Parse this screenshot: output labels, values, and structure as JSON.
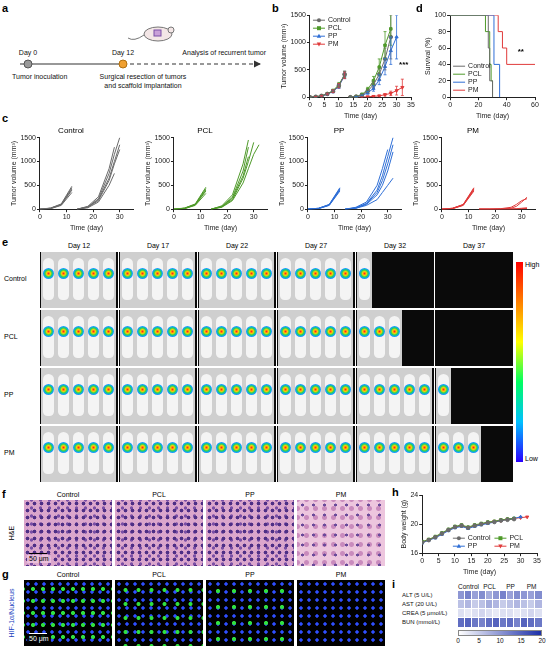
{
  "schematic": {
    "panel": "a",
    "start": {
      "day": "Day 0",
      "event": "Tumor inoculation"
    },
    "surgery": {
      "day": "Day 12",
      "event": "Surgical resection of tumors and scaffold implantation"
    },
    "end": "Analysis of recurrent tumor"
  },
  "chart_data": [
    {
      "panel": "b",
      "type": "line",
      "x_label": "Time (day)",
      "y_label": "Tumor volume (mm³)",
      "x": [
        0,
        2,
        4,
        6,
        8,
        10,
        12,
        13,
        14,
        16,
        18,
        20,
        22,
        24,
        26,
        28,
        30,
        32
      ],
      "xlim": [
        0,
        35
      ],
      "xticks": [
        0,
        5,
        10,
        15,
        20,
        25,
        30,
        35
      ],
      "ylim": [
        0,
        1500
      ],
      "yticks": [
        0,
        500,
        1000,
        1500
      ],
      "grid": false,
      "legend": "upper left",
      "series": [
        {
          "name": "Control",
          "color": "#6b6b6b",
          "marker": "circle",
          "values": [
            0,
            8,
            25,
            60,
            110,
            210,
            420,
            null,
            0,
            10,
            40,
            110,
            230,
            420,
            700,
            1100,
            null,
            null
          ],
          "errors": [
            0,
            3,
            8,
            15,
            25,
            40,
            60,
            null,
            0,
            5,
            15,
            30,
            60,
            100,
            200,
            400,
            null,
            null
          ]
        },
        {
          "name": "PCL",
          "color": "#4f9a2a",
          "marker": "square",
          "values": [
            0,
            8,
            25,
            60,
            120,
            230,
            410,
            null,
            0,
            12,
            50,
            140,
            300,
            550,
            950,
            1250,
            null,
            null
          ],
          "errors": [
            0,
            3,
            8,
            15,
            25,
            40,
            60,
            null,
            0,
            5,
            20,
            40,
            80,
            150,
            250,
            300,
            null,
            null
          ]
        },
        {
          "name": "PP",
          "color": "#2f6fd6",
          "marker": "triangle-up",
          "values": [
            0,
            7,
            22,
            55,
            105,
            200,
            400,
            null,
            0,
            8,
            30,
            80,
            160,
            320,
            560,
            850,
            1100,
            null
          ],
          "errors": [
            0,
            3,
            8,
            15,
            25,
            40,
            60,
            null,
            0,
            4,
            10,
            25,
            50,
            90,
            150,
            250,
            400,
            null
          ]
        },
        {
          "name": "PM",
          "color": "#e03b3b",
          "marker": "triangle-down",
          "values": [
            0,
            8,
            24,
            58,
            110,
            210,
            400,
            null,
            0,
            0,
            3,
            8,
            15,
            25,
            45,
            70,
            120,
            180
          ],
          "errors": [
            0,
            3,
            8,
            15,
            25,
            40,
            60,
            null,
            0,
            0,
            2,
            5,
            8,
            12,
            20,
            40,
            80,
            150
          ]
        }
      ],
      "annotations": [
        {
          "text": "***",
          "x": 32.5,
          "y": 600
        }
      ]
    },
    {
      "panel": "c",
      "type": "line",
      "title": "Control",
      "x_label": "Time (day)",
      "y_label": "Tumor volume (mm³)",
      "x": [
        0,
        4,
        8,
        12,
        13,
        14,
        18,
        22,
        26,
        28,
        30,
        32
      ],
      "xlim": [
        0,
        35
      ],
      "xticks": [
        0,
        10,
        20,
        30
      ],
      "ylim": [
        0,
        1500
      ],
      "yticks": [
        0,
        500,
        1000,
        1500
      ],
      "grid": false,
      "series": [
        {
          "color": "#6b6b6b",
          "values": [
            0,
            20,
            100,
            450,
            null,
            0,
            50,
            200,
            650,
            1000,
            1350,
            null
          ]
        },
        {
          "color": "#6b6b6b",
          "values": [
            0,
            15,
            90,
            400,
            null,
            0,
            40,
            180,
            600,
            950,
            1250,
            null
          ]
        },
        {
          "color": "#6b6b6b",
          "values": [
            0,
            25,
            110,
            480,
            null,
            0,
            60,
            260,
            850,
            1300,
            null,
            null
          ]
        },
        {
          "color": "#6b6b6b",
          "values": [
            0,
            10,
            80,
            350,
            null,
            0,
            30,
            150,
            500,
            750,
            null,
            null
          ]
        },
        {
          "color": "#6b6b6b",
          "values": [
            0,
            20,
            95,
            420,
            null,
            0,
            45,
            220,
            750,
            1150,
            1500,
            null
          ]
        }
      ]
    },
    {
      "type": "line",
      "title": "PCL",
      "x_label": "Time (day)",
      "y_label": "Tumor volume (mm³)",
      "x": [
        0,
        4,
        8,
        12,
        13,
        14,
        18,
        22,
        26,
        28,
        30,
        32
      ],
      "xlim": [
        0,
        35
      ],
      "xticks": [
        0,
        10,
        20,
        30
      ],
      "ylim": [
        0,
        1500
      ],
      "yticks": [
        0,
        500,
        1000,
        1500
      ],
      "grid": false,
      "series": [
        {
          "color": "#4f9a2a",
          "values": [
            0,
            20,
            100,
            430,
            null,
            0,
            60,
            250,
            800,
            1300,
            null,
            null
          ]
        },
        {
          "color": "#4f9a2a",
          "values": [
            0,
            15,
            90,
            380,
            null,
            0,
            50,
            200,
            650,
            1000,
            1400,
            null
          ]
        },
        {
          "color": "#4f9a2a",
          "values": [
            0,
            25,
            110,
            460,
            null,
            0,
            70,
            300,
            950,
            1450,
            null,
            null
          ]
        },
        {
          "color": "#4f9a2a",
          "values": [
            0,
            10,
            80,
            330,
            null,
            0,
            40,
            180,
            550,
            850,
            1150,
            1350
          ]
        },
        {
          "color": "#4f9a2a",
          "values": [
            0,
            20,
            95,
            400,
            null,
            0,
            50,
            230,
            700,
            1100,
            null,
            null
          ]
        }
      ]
    },
    {
      "type": "line",
      "title": "PP",
      "x_label": "Time (day)",
      "y_label": "Tumor volume (mm³)",
      "x": [
        0,
        4,
        8,
        12,
        13,
        14,
        18,
        22,
        26,
        28,
        30,
        32
      ],
      "xlim": [
        0,
        35
      ],
      "xticks": [
        0,
        10,
        20,
        30
      ],
      "ylim": [
        0,
        1500
      ],
      "yticks": [
        0,
        500,
        1000,
        1500
      ],
      "grid": false,
      "series": [
        {
          "color": "#2f6fd6",
          "values": [
            0,
            15,
            90,
            420,
            null,
            0,
            30,
            120,
            400,
            700,
            1100,
            1500
          ]
        },
        {
          "color": "#2f6fd6",
          "values": [
            0,
            20,
            100,
            450,
            null,
            0,
            40,
            150,
            500,
            850,
            1250,
            null
          ]
        },
        {
          "color": "#2f6fd6",
          "values": [
            0,
            10,
            80,
            380,
            null,
            0,
            20,
            100,
            300,
            500,
            800,
            1200
          ]
        },
        {
          "color": "#2f6fd6",
          "values": [
            0,
            15,
            85,
            400,
            null,
            0,
            25,
            110,
            350,
            600,
            950,
            1350
          ]
        },
        {
          "color": "#2f6fd6",
          "values": [
            0,
            20,
            95,
            430,
            null,
            0,
            20,
            80,
            200,
            350,
            500,
            650
          ]
        }
      ]
    },
    {
      "type": "line",
      "title": "PM",
      "x_label": "Time (day)",
      "y_label": "Tumor volume (mm³)",
      "x": [
        0,
        4,
        8,
        12,
        13,
        14,
        18,
        22,
        26,
        28,
        30,
        32
      ],
      "xlim": [
        0,
        35
      ],
      "xticks": [
        0,
        10,
        20,
        30
      ],
      "ylim": [
        0,
        1500
      ],
      "yticks": [
        0,
        500,
        1000,
        1500
      ],
      "grid": false,
      "series": [
        {
          "color": "#e03b3b",
          "values": [
            0,
            15,
            90,
            420,
            null,
            0,
            0,
            5,
            20,
            60,
            150,
            250
          ]
        },
        {
          "color": "#e03b3b",
          "values": [
            0,
            20,
            100,
            450,
            null,
            0,
            0,
            10,
            40,
            100,
            180,
            220
          ]
        },
        {
          "color": "#e03b3b",
          "values": [
            0,
            10,
            80,
            380,
            null,
            0,
            0,
            0,
            5,
            10,
            20,
            30
          ]
        },
        {
          "color": "#e03b3b",
          "values": [
            0,
            15,
            85,
            400,
            null,
            0,
            0,
            0,
            0,
            5,
            10,
            15
          ]
        },
        {
          "color": "#e03b3b",
          "values": [
            0,
            20,
            95,
            430,
            null,
            0,
            0,
            0,
            0,
            0,
            5,
            10
          ]
        }
      ]
    },
    {
      "panel": "d",
      "type": "line",
      "line_style": "step",
      "x_label": "Time (day)",
      "y_label": "Survival (%)",
      "xlim": [
        0,
        60
      ],
      "xticks": [
        0,
        20,
        40,
        60
      ],
      "ylim": [
        0,
        100
      ],
      "yticks": [
        0,
        20,
        40,
        60,
        80,
        100
      ],
      "grid": false,
      "legend": "lower left",
      "series": [
        {
          "name": "Control",
          "color": "#6b6b6b",
          "x": [
            0,
            27,
            28,
            30
          ],
          "values": [
            100,
            60,
            20,
            0
          ]
        },
        {
          "name": "PCL",
          "color": "#4f9a2a",
          "x": [
            0,
            25,
            28,
            29,
            30
          ],
          "values": [
            100,
            80,
            40,
            20,
            0
          ]
        },
        {
          "name": "PP",
          "color": "#2f6fd6",
          "x": [
            0,
            31,
            35
          ],
          "values": [
            100,
            40,
            0
          ]
        },
        {
          "name": "PM",
          "color": "#e03b3b",
          "x": [
            0,
            34,
            37,
            40,
            60
          ],
          "values": [
            100,
            80,
            60,
            40,
            40
          ]
        }
      ],
      "annotations": [
        {
          "text": "**",
          "x": 50,
          "y": 55
        }
      ]
    },
    {
      "panel": "h",
      "type": "line",
      "x_label": "Time (day)",
      "y_label": "Body weight (g)",
      "x": [
        0,
        2,
        4,
        6,
        8,
        10,
        12,
        14,
        16,
        18,
        20,
        22,
        24,
        26,
        28,
        30,
        32
      ],
      "xlim": [
        0,
        35
      ],
      "xticks": [
        0,
        5,
        10,
        15,
        20,
        25,
        30,
        35
      ],
      "ylim": [
        16,
        24
      ],
      "yticks": [
        16,
        20,
        24
      ],
      "grid": false,
      "legend": "lower right",
      "series": [
        {
          "name": "Control",
          "color": "#6b6b6b",
          "marker": "circle",
          "values": [
            17.5,
            17.8,
            18.2,
            18.7,
            19.2,
            19.6,
            19.8,
            19.5,
            19.8,
            20.0,
            20.2,
            20.3,
            20.5,
            20.6,
            20.7,
            null,
            null
          ]
        },
        {
          "name": "PCL",
          "color": "#4f9a2a",
          "marker": "square",
          "values": [
            17.6,
            17.9,
            18.3,
            18.8,
            19.3,
            19.7,
            19.9,
            19.6,
            19.9,
            20.1,
            20.3,
            20.4,
            20.6,
            20.7,
            20.8,
            null,
            null
          ]
        },
        {
          "name": "PP",
          "color": "#2f6fd6",
          "marker": "triangle-up",
          "values": [
            17.4,
            17.8,
            18.1,
            18.6,
            19.1,
            19.5,
            19.7,
            19.4,
            19.7,
            19.9,
            20.1,
            20.3,
            20.5,
            20.7,
            20.8,
            21.0,
            null
          ]
        },
        {
          "name": "PM",
          "color": "#e03b3b",
          "marker": "triangle-down",
          "values": [
            17.5,
            17.9,
            18.2,
            18.7,
            19.2,
            19.6,
            19.8,
            19.5,
            19.8,
            20.0,
            20.2,
            20.4,
            20.5,
            20.7,
            20.8,
            20.9,
            21.0
          ]
        }
      ]
    },
    {
      "panel": "i",
      "type": "heatmap",
      "groups": [
        "Control",
        "PCL",
        "PP",
        "PM"
      ],
      "rows": [
        "ALT (5 U/L)",
        "AST (20 U/L)",
        "CREA (5 μmol/L)",
        "BUN (mmol/L)"
      ],
      "cells": [
        [
          10,
          12,
          9,
          11,
          8,
          10,
          12,
          9,
          11,
          10,
          9,
          11
        ],
        [
          6,
          7,
          5,
          6,
          8,
          7,
          5,
          6,
          7,
          6,
          5,
          7
        ],
        [
          3,
          2,
          3,
          4,
          3,
          2,
          3,
          3,
          2,
          3,
          4,
          3
        ],
        [
          14,
          15,
          13,
          12,
          14,
          15,
          13,
          14,
          12,
          15,
          14,
          13
        ]
      ],
      "colorbar": {
        "range": [
          0,
          20
        ],
        "ticks": [
          0,
          5,
          10,
          15,
          20
        ],
        "colors": [
          "#ffffff",
          "#1c2fa8"
        ]
      }
    }
  ],
  "imaging": {
    "panel": "e",
    "days": [
      "Day 12",
      "Day 17",
      "Day 22",
      "Day 27",
      "Day 32",
      "Day 37"
    ],
    "groups": [
      "Control",
      "PCL",
      "PP",
      "PM"
    ],
    "alive": [
      [
        5,
        5,
        5,
        5,
        1,
        0
      ],
      [
        5,
        5,
        5,
        5,
        3,
        0
      ],
      [
        5,
        5,
        5,
        5,
        5,
        1
      ],
      [
        5,
        5,
        5,
        5,
        5,
        3
      ]
    ],
    "colorbar": {
      "high": "High",
      "low": "Low"
    }
  },
  "histology": {
    "panel": "f",
    "stain": "H&E",
    "groups": [
      "Control",
      "PCL",
      "PP",
      "PM"
    ],
    "scale_bar": "50 μm"
  },
  "immunofluorescence": {
    "panel": "g",
    "stain": "HIF-1α/Nucleus",
    "groups": [
      "Control",
      "PCL",
      "PP",
      "PM"
    ],
    "scale_bar": "50 μm"
  }
}
